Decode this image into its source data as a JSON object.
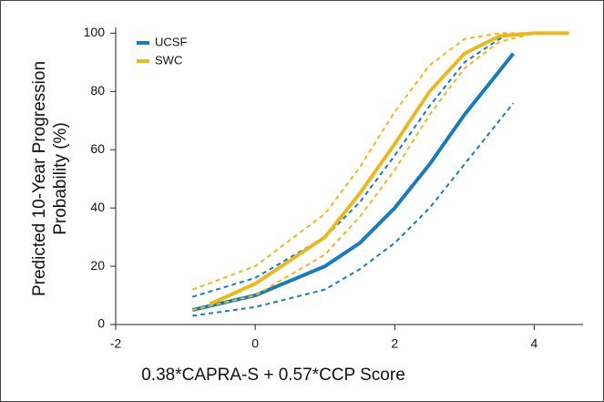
{
  "chart_data": {
    "type": "line",
    "ylabel": [
      "Predicted 10-Year Progression",
      "Probability (%)"
    ],
    "xlabel": "0.38*CAPRA-S + 0.57*CCP Score",
    "xlim": [
      -2,
      4.7
    ],
    "xticks": [
      -2,
      0,
      2,
      4
    ],
    "ylim": [
      0,
      102
    ],
    "yticks": [
      0,
      20,
      40,
      60,
      80,
      100
    ],
    "legend": "top-left",
    "series": [
      {
        "name": "UCSF",
        "color": "#1a7bb9",
        "x": [
          -0.9,
          0,
          1,
          1.5,
          2,
          2.5,
          3,
          3.5,
          3.7
        ],
        "values": [
          5,
          10,
          20,
          28,
          40,
          55,
          72,
          87,
          93
        ],
        "lower": [
          3,
          6,
          12,
          19,
          28,
          40,
          55,
          70,
          76
        ],
        "upper": [
          9.5,
          16,
          30,
          42,
          58,
          75,
          90,
          98,
          100
        ]
      },
      {
        "name": "SWC",
        "color": "#e8b923",
        "x": [
          -0.65,
          0,
          1,
          1.5,
          2,
          2.5,
          3,
          3.5,
          4,
          4.5
        ],
        "values": [
          7,
          14,
          30,
          45,
          62,
          80,
          93,
          99,
          100,
          100
        ]
      },
      {
        "name": null,
        "color": "#e8b923",
        "x": [
          -0.9,
          0,
          1,
          1.5,
          2,
          2.5,
          3,
          3.5,
          4,
          4.2
        ],
        "lower": [
          5,
          10,
          24,
          37,
          53,
          72,
          88,
          97,
          100,
          100
        ],
        "upper": [
          12,
          20,
          38,
          54,
          73,
          89,
          98,
          100,
          100,
          100
        ]
      }
    ]
  }
}
